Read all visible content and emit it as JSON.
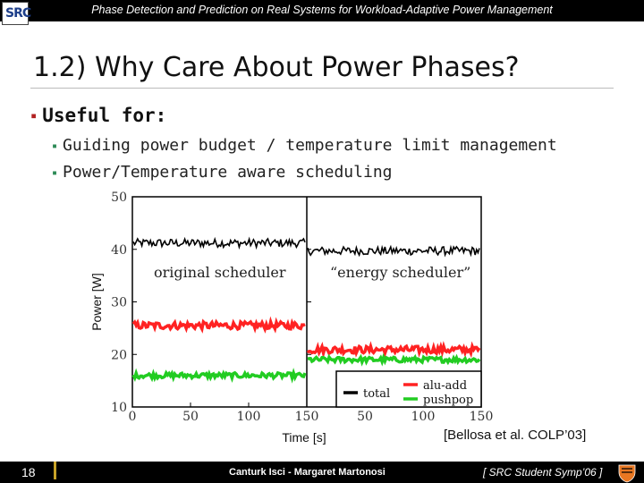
{
  "header": {
    "title": "Phase Detection and Prediction on Real Systems for Workload-Adaptive Power Management",
    "logo_text": "SRC",
    "logo_icon": "src-logo-icon"
  },
  "slide": {
    "title": "1.2) Why Care About Power Phases?",
    "bullet_main": "Useful for:",
    "sub_bullets": [
      "Guiding power budget / temperature limit management",
      "Power/Temperature aware scheduling"
    ],
    "bullet_marker": "▪"
  },
  "chart_data": {
    "type": "line",
    "xlabel": "Time [s]",
    "ylabel": "Power [W]",
    "ylim": [
      10,
      50
    ],
    "yticks": [
      10,
      20,
      30,
      40,
      50
    ],
    "panels": [
      {
        "label": "original scheduler",
        "xlim": [
          0,
          150
        ],
        "xticks": [
          0,
          50,
          100,
          150
        ]
      },
      {
        "label": "“energy scheduler”",
        "xlim": [
          0,
          150
        ],
        "xticks": [
          50,
          100,
          150
        ]
      }
    ],
    "series": [
      {
        "name": "total",
        "color": "#000000",
        "panel1_mean": 41.2,
        "panel2_mean": 39.7,
        "noise": 0.8
      },
      {
        "name": "alu-add",
        "color": "#ff2222",
        "panel1_mean": 25.5,
        "panel2_mean": 20.9,
        "noise": 0.7
      },
      {
        "name": "pushpop",
        "color": "#22cc22",
        "panel1_mean": 16.0,
        "panel2_mean": 19.0,
        "noise": 0.5
      }
    ],
    "legend_position": "bottom-right",
    "grid": false
  },
  "citation": "[Bellosa et al. COLP’03]",
  "footer": {
    "page": "18",
    "authors": "Canturk Isci - Margaret Martonosi",
    "conference": "[ SRC Student Symp’06 ]",
    "emblem_icon": "princeton-shield-icon"
  }
}
